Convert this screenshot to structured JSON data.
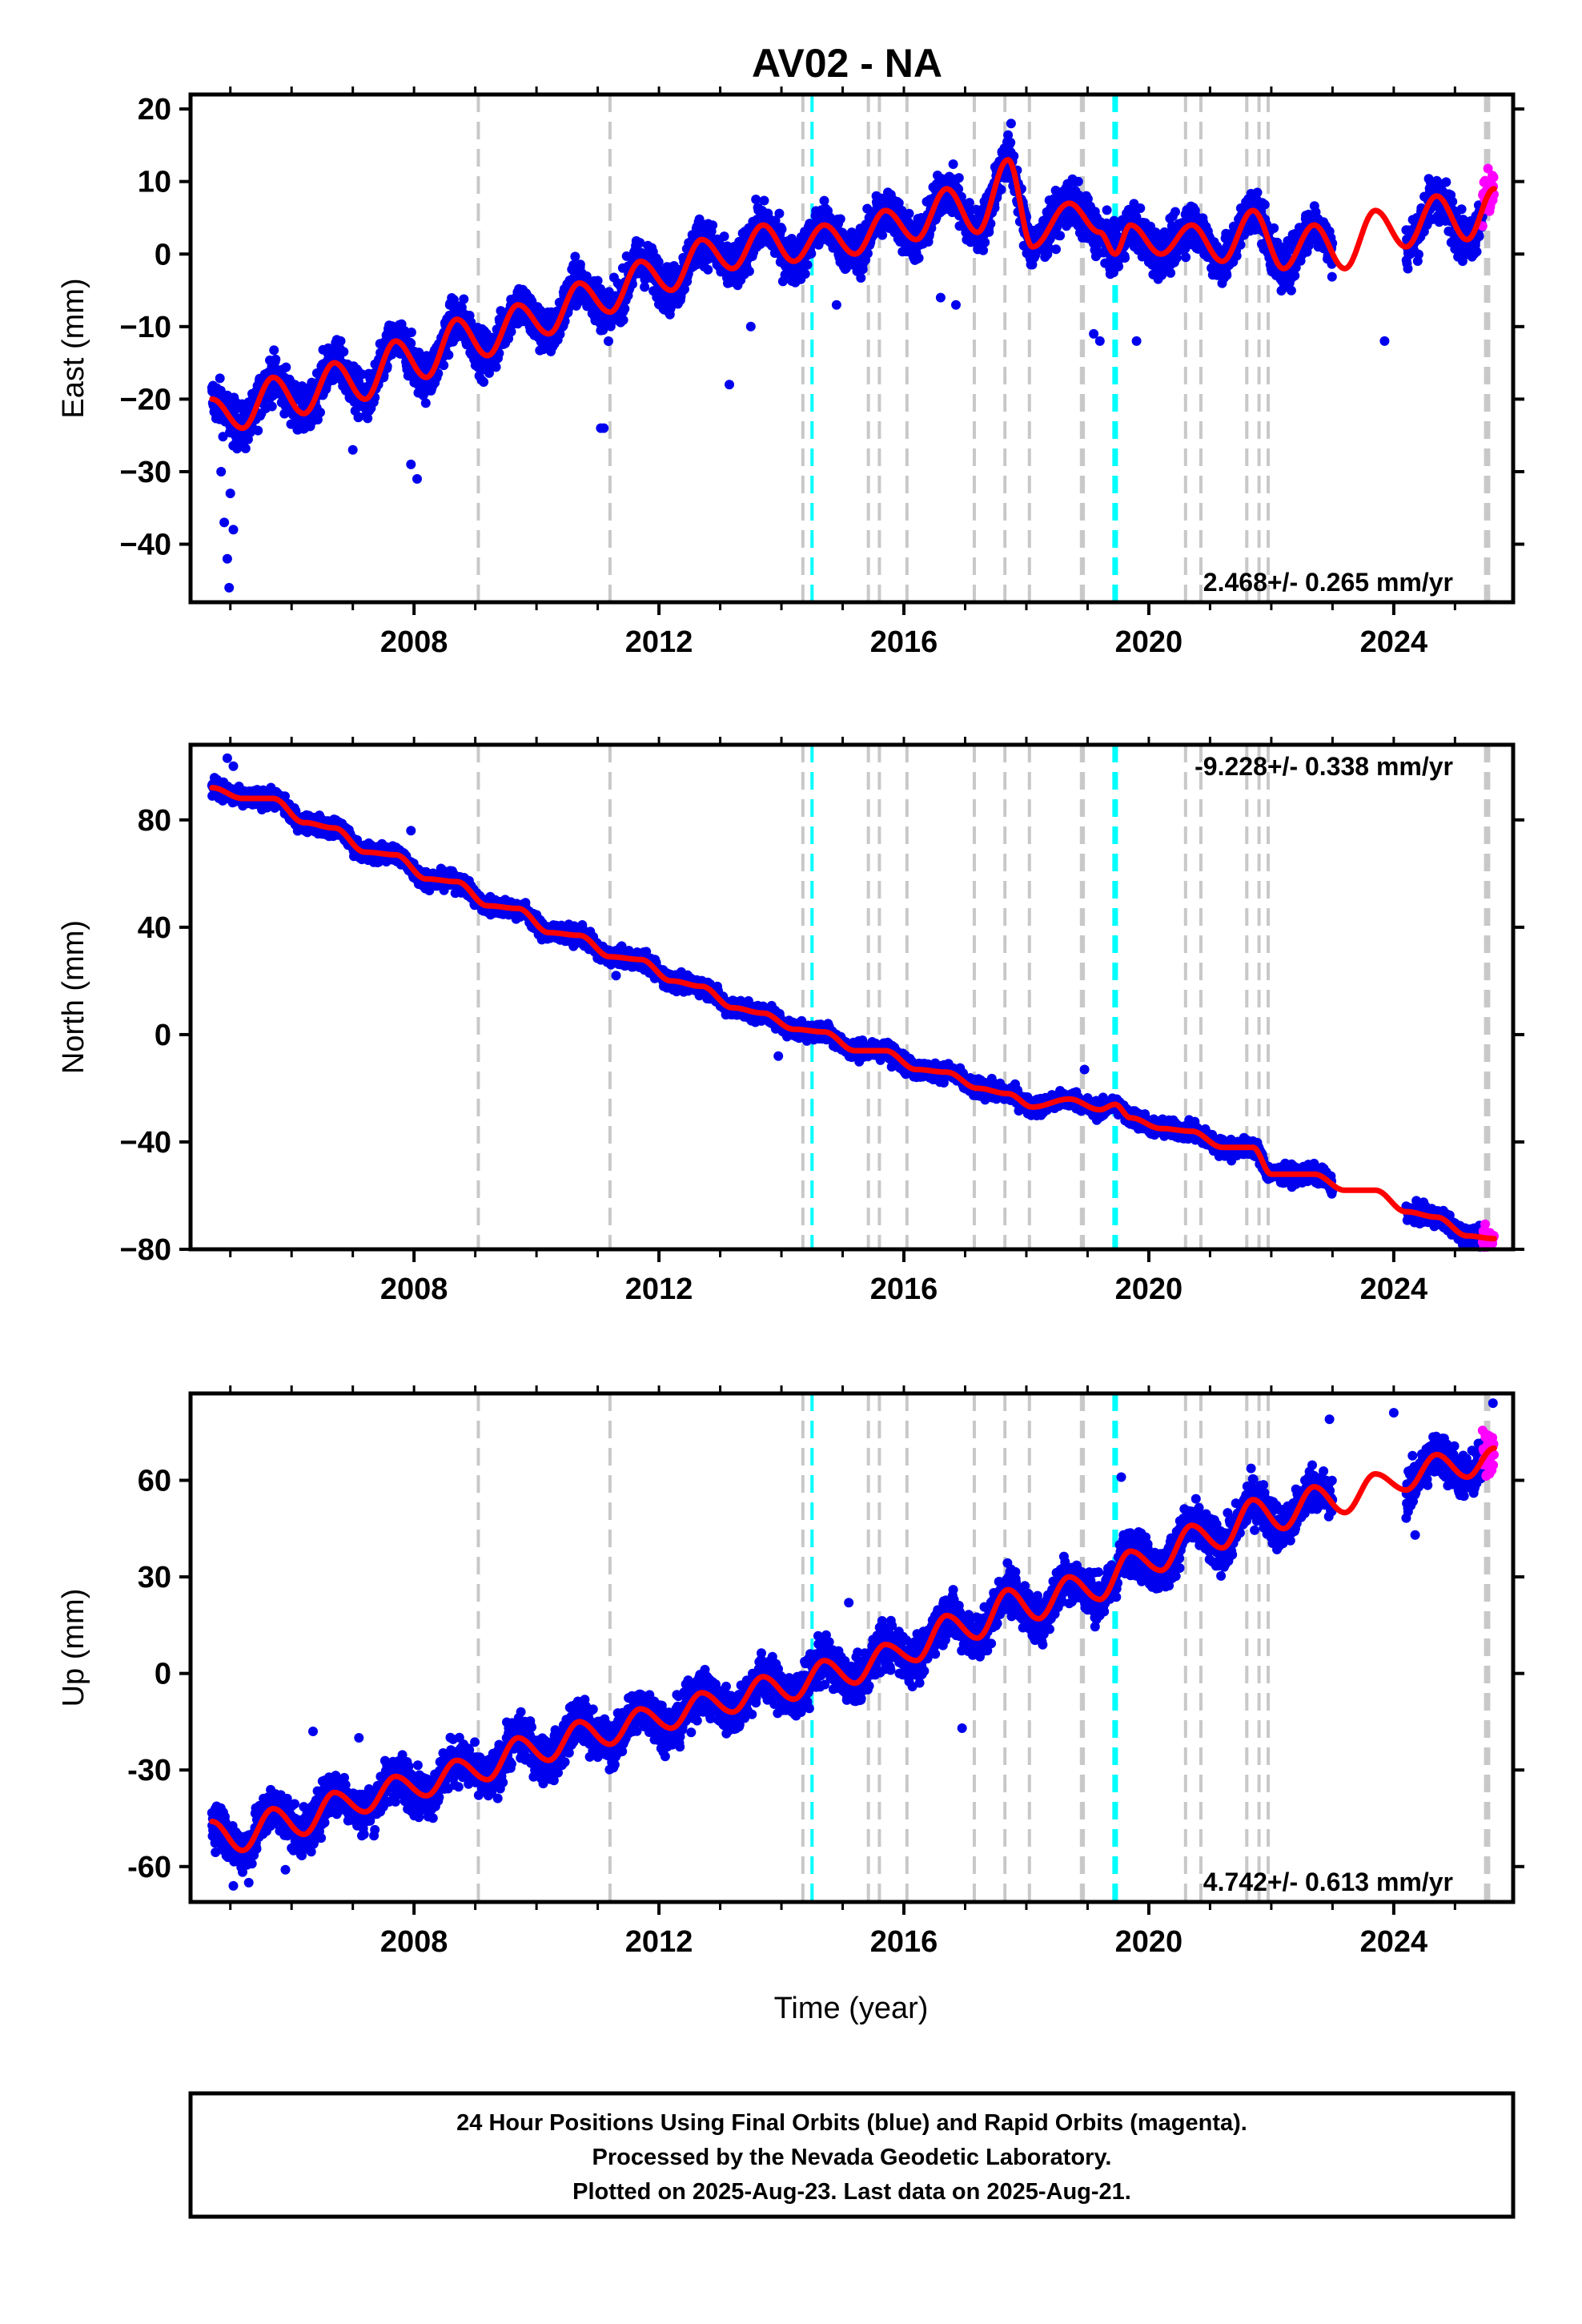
{
  "chart_data": {
    "title": "AV02 - NA",
    "xlabel": "Time (year)",
    "x_ticks": [
      2008,
      2012,
      2016,
      2020,
      2024
    ],
    "xlim": [
      2004.35,
      2025.95
    ],
    "colors": {
      "final": "#0000ee",
      "rapid": "#ff00ff",
      "model": "#ff0000",
      "equipment_change": "#c8c8c8",
      "earthquake": "#00ffff"
    },
    "equipment_change_years": [
      2009.05,
      2011.2,
      2014.35,
      2015.42,
      2015.6,
      2016.05,
      2017.15,
      2017.65,
      2018.05,
      2018.9,
      2018.93,
      2020.6,
      2020.85,
      2021.6,
      2021.8,
      2021.95,
      2025.5,
      2025.55
    ],
    "earthquake_years": [
      2014.5,
      2019.43,
      2019.47
    ],
    "panels": [
      {
        "type": "scatter",
        "component": "East",
        "ylabel": "East (mm)",
        "ylim": [
          -48,
          22
        ],
        "y_ticks": [
          20,
          10,
          0,
          -10,
          -20,
          -30,
          -40
        ],
        "y_tick_labels": [
          "20",
          "10",
          "0",
          "−10",
          "−20",
          "−30",
          "−40"
        ],
        "rate": "2.468+/- 0.265 mm/yr",
        "rate_position": "bottom-right",
        "final_start": 2004.7,
        "final_end": 2025.45,
        "rapid_start": 2025.45,
        "rapid_end": 2025.64,
        "gaps": [
          [
            2023.0,
            2024.2
          ]
        ],
        "model_knots": [
          [
            2004.7,
            -20
          ],
          [
            2005.2,
            -24
          ],
          [
            2005.7,
            -17
          ],
          [
            2006.2,
            -22
          ],
          [
            2006.7,
            -15
          ],
          [
            2007.2,
            -20
          ],
          [
            2007.7,
            -12
          ],
          [
            2008.2,
            -17
          ],
          [
            2008.7,
            -9
          ],
          [
            2009.2,
            -14
          ],
          [
            2009.7,
            -7
          ],
          [
            2010.2,
            -11
          ],
          [
            2010.7,
            -4
          ],
          [
            2011.2,
            -8
          ],
          [
            2011.7,
            -1
          ],
          [
            2012.2,
            -5
          ],
          [
            2012.7,
            2
          ],
          [
            2013.2,
            -2
          ],
          [
            2013.7,
            4
          ],
          [
            2014.2,
            -1
          ],
          [
            2014.7,
            4
          ],
          [
            2015.2,
            0
          ],
          [
            2015.7,
            6
          ],
          [
            2016.2,
            2
          ],
          [
            2016.7,
            9
          ],
          [
            2017.2,
            3
          ],
          [
            2017.7,
            13
          ],
          [
            2018.1,
            1
          ],
          [
            2018.7,
            7
          ],
          [
            2019.2,
            3
          ],
          [
            2019.45,
            0
          ],
          [
            2019.7,
            4
          ],
          [
            2020.2,
            0
          ],
          [
            2020.7,
            4
          ],
          [
            2021.2,
            -1
          ],
          [
            2021.7,
            6
          ],
          [
            2022.2,
            -2
          ],
          [
            2022.7,
            4
          ],
          [
            2023.2,
            -2
          ],
          [
            2023.7,
            6
          ],
          [
            2024.2,
            1
          ],
          [
            2024.7,
            8
          ],
          [
            2025.2,
            2
          ],
          [
            2025.64,
            9
          ]
        ],
        "scatter_noise": 2.2,
        "outliers": [
          [
            2004.85,
            -30
          ],
          [
            2004.9,
            -37
          ],
          [
            2004.95,
            -42
          ],
          [
            2004.98,
            -46
          ],
          [
            2005.0,
            -33
          ],
          [
            2005.05,
            -38
          ],
          [
            2007.0,
            -27
          ],
          [
            2007.85,
            -13
          ],
          [
            2007.95,
            -29
          ],
          [
            2008.05,
            -31
          ],
          [
            2011.05,
            -24
          ],
          [
            2011.1,
            -24
          ],
          [
            2013.15,
            -18
          ],
          [
            2013.5,
            -10
          ],
          [
            2014.2,
            -3
          ],
          [
            2014.9,
            -7
          ],
          [
            2016.6,
            -6
          ],
          [
            2016.85,
            -7
          ],
          [
            2019.1,
            -11
          ],
          [
            2019.2,
            -12
          ],
          [
            2019.8,
            -12
          ],
          [
            2023.85,
            -12
          ],
          [
            2015.55,
            8
          ],
          [
            2017.75,
            18
          ]
        ]
      },
      {
        "type": "scatter",
        "component": "North",
        "ylabel": "North (mm)",
        "ylim": [
          -80,
          108
        ],
        "y_ticks": [
          80,
          40,
          0,
          -40,
          -80
        ],
        "y_tick_labels": [
          "80",
          "40",
          "0",
          "−40",
          "−80"
        ],
        "rate": "-9.228+/- 0.338 mm/yr",
        "rate_position": "top-right",
        "final_start": 2004.7,
        "final_end": 2025.45,
        "rapid_start": 2025.45,
        "rapid_end": 2025.64,
        "gaps": [
          [
            2023.0,
            2024.2
          ]
        ],
        "model_knots": [
          [
            2004.7,
            92
          ],
          [
            2005.2,
            88
          ],
          [
            2005.7,
            88
          ],
          [
            2006.2,
            79
          ],
          [
            2006.7,
            77
          ],
          [
            2007.2,
            68
          ],
          [
            2007.7,
            67
          ],
          [
            2008.2,
            58
          ],
          [
            2008.7,
            57
          ],
          [
            2009.2,
            48
          ],
          [
            2009.7,
            47
          ],
          [
            2010.2,
            38
          ],
          [
            2010.7,
            37
          ],
          [
            2011.2,
            29
          ],
          [
            2011.7,
            28
          ],
          [
            2012.2,
            20
          ],
          [
            2012.7,
            18
          ],
          [
            2013.2,
            10
          ],
          [
            2013.7,
            8
          ],
          [
            2014.2,
            2
          ],
          [
            2014.7,
            1
          ],
          [
            2015.2,
            -6
          ],
          [
            2015.7,
            -6
          ],
          [
            2016.2,
            -13
          ],
          [
            2016.7,
            -14
          ],
          [
            2017.2,
            -20
          ],
          [
            2017.7,
            -22
          ],
          [
            2018.1,
            -27
          ],
          [
            2018.7,
            -24
          ],
          [
            2019.2,
            -28
          ],
          [
            2019.45,
            -26
          ],
          [
            2019.7,
            -31
          ],
          [
            2020.2,
            -35
          ],
          [
            2020.7,
            -36
          ],
          [
            2021.2,
            -42
          ],
          [
            2021.7,
            -42
          ],
          [
            2022.0,
            -52
          ],
          [
            2022.7,
            -52
          ],
          [
            2023.2,
            -58
          ],
          [
            2023.7,
            -58
          ],
          [
            2024.2,
            -66
          ],
          [
            2024.7,
            -68
          ],
          [
            2025.2,
            -75
          ],
          [
            2025.64,
            -76
          ]
        ],
        "scatter_noise": 2.3,
        "outliers": [
          [
            2004.95,
            103
          ],
          [
            2005.05,
            100
          ],
          [
            2007.25,
            65
          ],
          [
            2007.95,
            76
          ],
          [
            2008.3,
            56
          ],
          [
            2011.3,
            22
          ],
          [
            2013.95,
            -8
          ],
          [
            2015.8,
            -12
          ],
          [
            2018.95,
            -13
          ],
          [
            2021.35,
            -47
          ]
        ]
      },
      {
        "type": "scatter",
        "component": "Up",
        "ylabel": "Up (mm)",
        "ylim": [
          -71,
          87
        ],
        "y_ticks": [
          60,
          30,
          0,
          -30,
          -60
        ],
        "y_tick_labels": [
          "60",
          "30",
          "0",
          "-30",
          "-60"
        ],
        "rate": "4.742+/- 0.613 mm/yr",
        "rate_position": "bottom-right",
        "final_start": 2004.7,
        "final_end": 2025.45,
        "rapid_start": 2025.45,
        "rapid_end": 2025.64,
        "gaps": [
          [
            2023.0,
            2024.2
          ]
        ],
        "model_knots": [
          [
            2004.7,
            -46
          ],
          [
            2005.2,
            -55
          ],
          [
            2005.7,
            -42
          ],
          [
            2006.2,
            -50
          ],
          [
            2006.7,
            -37
          ],
          [
            2007.2,
            -43
          ],
          [
            2007.7,
            -32
          ],
          [
            2008.2,
            -38
          ],
          [
            2008.7,
            -27
          ],
          [
            2009.2,
            -33
          ],
          [
            2009.7,
            -20
          ],
          [
            2010.2,
            -27
          ],
          [
            2010.7,
            -15
          ],
          [
            2011.2,
            -22
          ],
          [
            2011.7,
            -11
          ],
          [
            2012.2,
            -17
          ],
          [
            2012.7,
            -6
          ],
          [
            2013.2,
            -12
          ],
          [
            2013.7,
            -1
          ],
          [
            2014.2,
            -8
          ],
          [
            2014.7,
            4
          ],
          [
            2015.2,
            -3
          ],
          [
            2015.7,
            9
          ],
          [
            2016.2,
            4
          ],
          [
            2016.7,
            18
          ],
          [
            2017.2,
            11
          ],
          [
            2017.7,
            26
          ],
          [
            2018.2,
            17
          ],
          [
            2018.7,
            30
          ],
          [
            2019.2,
            23
          ],
          [
            2019.7,
            38
          ],
          [
            2020.2,
            32
          ],
          [
            2020.7,
            46
          ],
          [
            2021.2,
            39
          ],
          [
            2021.7,
            54
          ],
          [
            2022.2,
            45
          ],
          [
            2022.7,
            58
          ],
          [
            2023.2,
            50
          ],
          [
            2023.7,
            62
          ],
          [
            2024.2,
            57
          ],
          [
            2024.7,
            68
          ],
          [
            2025.2,
            61
          ],
          [
            2025.64,
            70
          ]
        ],
        "scatter_noise": 5.0,
        "outliers": [
          [
            2005.05,
            -66
          ],
          [
            2005.3,
            -65
          ],
          [
            2005.9,
            -61
          ],
          [
            2006.35,
            -18
          ],
          [
            2007.1,
            -20
          ],
          [
            2015.1,
            22
          ],
          [
            2016.95,
            -17
          ],
          [
            2019.55,
            61
          ],
          [
            2022.55,
            60
          ],
          [
            2022.95,
            79
          ],
          [
            2024.0,
            81
          ],
          [
            2024.35,
            43
          ],
          [
            2025.62,
            84
          ]
        ]
      }
    ]
  },
  "footer": {
    "line1": "24 Hour Positions Using Final Orbits (blue) and Rapid Orbits (magenta).",
    "line2": "Processed by the Nevada Geodetic Laboratory.",
    "line3": "Plotted on 2025-Aug-23. Last data on 2025-Aug-21."
  }
}
